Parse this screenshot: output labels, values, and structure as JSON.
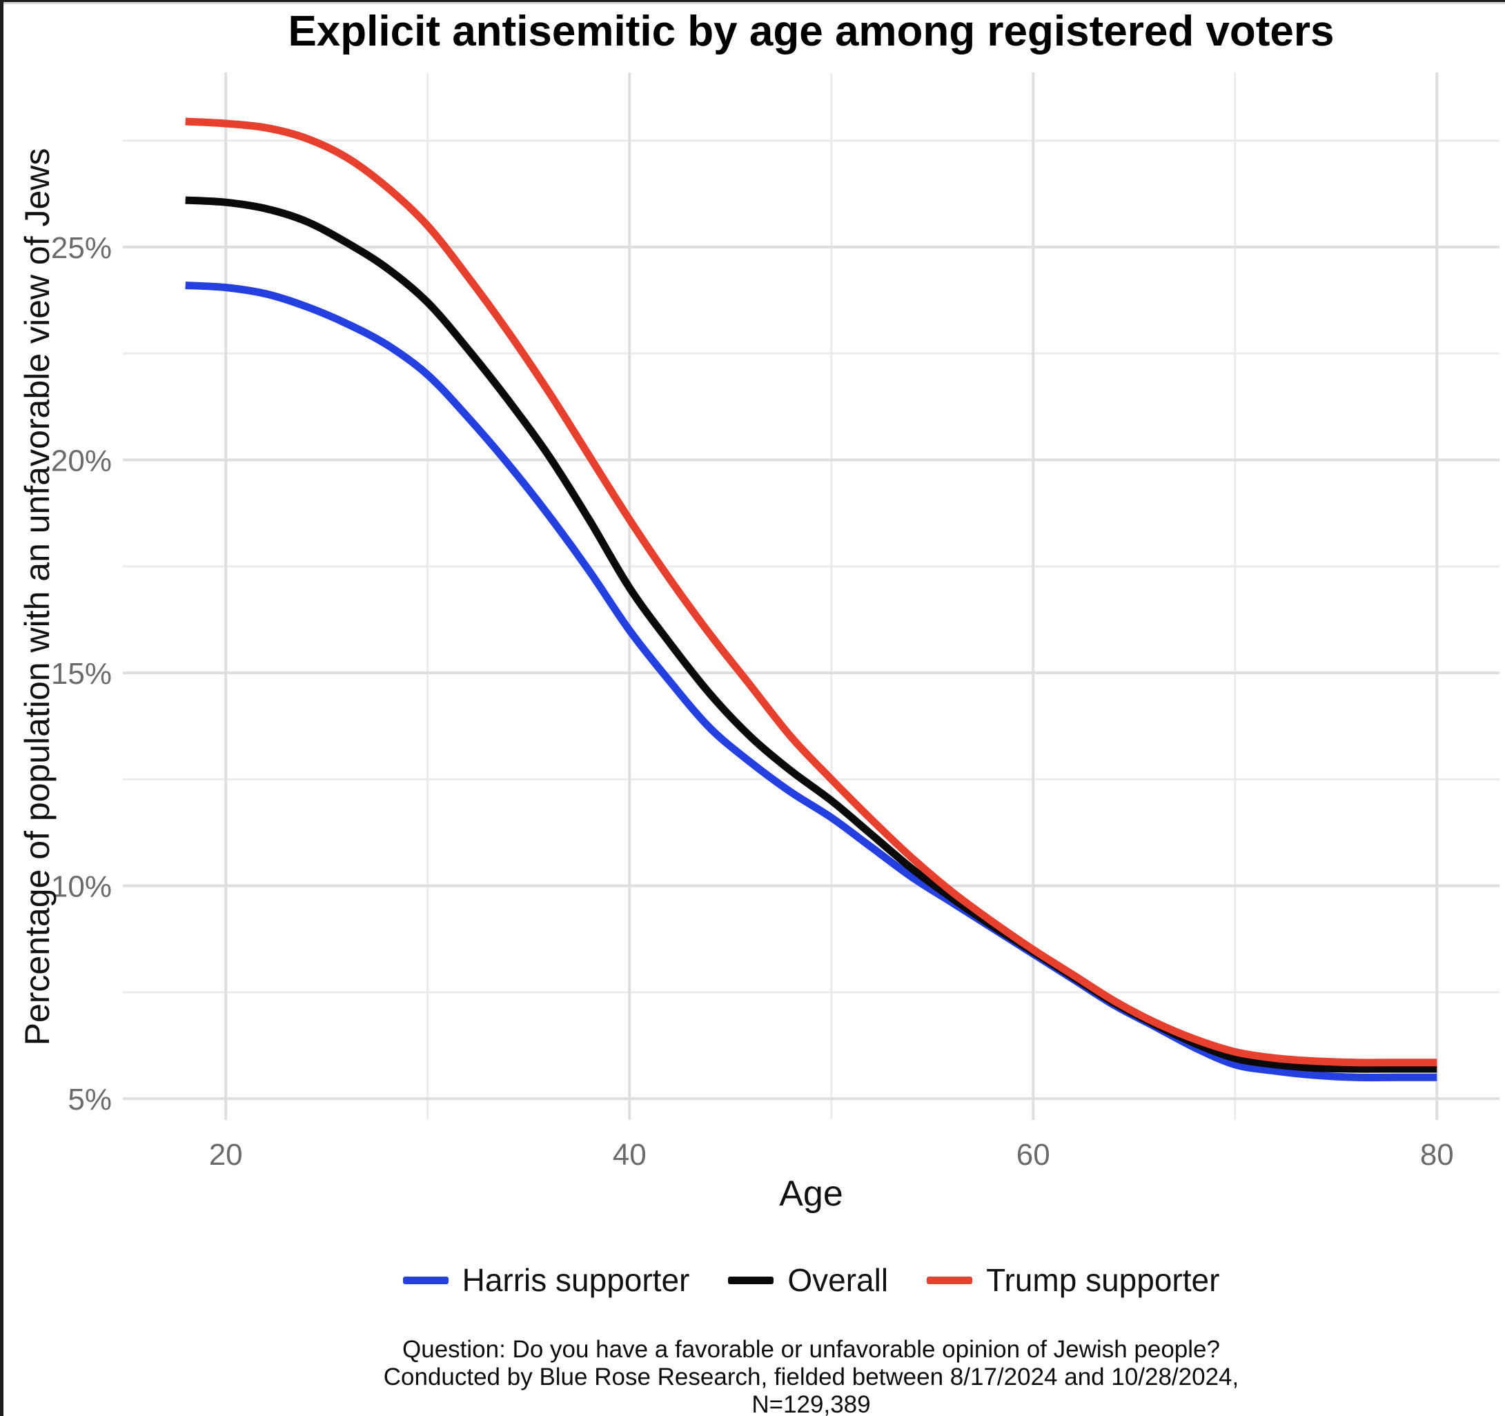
{
  "chart_data": {
    "type": "line",
    "title": "Explicit antisemitic by age among registered voters",
    "xlabel": "Age",
    "ylabel": "Percentage of population with an unfavorable view of Jews",
    "grid": true,
    "legend_position": "bottom",
    "x_range": [
      14.9,
      83.1
    ],
    "y_range": [
      4.5,
      29.1
    ],
    "x_ticks": [
      20,
      40,
      60,
      80
    ],
    "x_minor_ticks": [
      30,
      50,
      70
    ],
    "y_ticks": [
      5,
      10,
      15,
      20,
      25
    ],
    "y_tick_labels": [
      "5%",
      "10%",
      "15%",
      "20%",
      "25%"
    ],
    "y_minor_ticks": [
      7.5,
      12.5,
      17.5,
      22.5,
      27.5
    ],
    "x": [
      18,
      20,
      22,
      24,
      26,
      28,
      30,
      32,
      34,
      36,
      38,
      40,
      42,
      44,
      46,
      48,
      50,
      52,
      54,
      56,
      58,
      60,
      62,
      64,
      66,
      68,
      70,
      72,
      74,
      76,
      78,
      80
    ],
    "series": [
      {
        "name": "Harris supporter",
        "color": "#2540E0",
        "values": [
          24.1,
          24.05,
          23.9,
          23.6,
          23.2,
          22.7,
          22.0,
          21.0,
          19.9,
          18.7,
          17.4,
          16.0,
          14.8,
          13.7,
          12.9,
          12.2,
          11.6,
          10.9,
          10.2,
          9.6,
          9.0,
          8.4,
          7.8,
          7.2,
          6.7,
          6.2,
          5.8,
          5.65,
          5.55,
          5.5,
          5.5,
          5.5
        ]
      },
      {
        "name": "Overall",
        "color": "#0a0a0a",
        "values": [
          26.1,
          26.05,
          25.9,
          25.6,
          25.1,
          24.5,
          23.7,
          22.6,
          21.4,
          20.1,
          18.6,
          17.0,
          15.7,
          14.5,
          13.5,
          12.7,
          12.0,
          11.2,
          10.4,
          9.7,
          9.05,
          8.45,
          7.85,
          7.25,
          6.75,
          6.3,
          5.95,
          5.8,
          5.72,
          5.7,
          5.7,
          5.7
        ]
      },
      {
        "name": "Trump supporter",
        "color": "#E7402E",
        "values": [
          27.95,
          27.9,
          27.8,
          27.55,
          27.1,
          26.4,
          25.5,
          24.3,
          23.0,
          21.6,
          20.1,
          18.6,
          17.2,
          15.9,
          14.7,
          13.5,
          12.5,
          11.55,
          10.65,
          9.85,
          9.15,
          8.5,
          7.9,
          7.3,
          6.8,
          6.4,
          6.1,
          5.95,
          5.88,
          5.85,
          5.85,
          5.85
        ]
      }
    ],
    "caption_lines": [
      "Question: Do you have a favorable or unfavorable opinion of Jewish people?",
      "Conducted by Blue Rose Research, fielded between 8/17/2024 and 10/28/2024,",
      "N=129,389"
    ],
    "colors": {
      "grid_major": "#DEDEDE",
      "grid_minor": "#EBEBEB",
      "tick_text": "#6b6b6b",
      "background": "#ffffff"
    }
  }
}
